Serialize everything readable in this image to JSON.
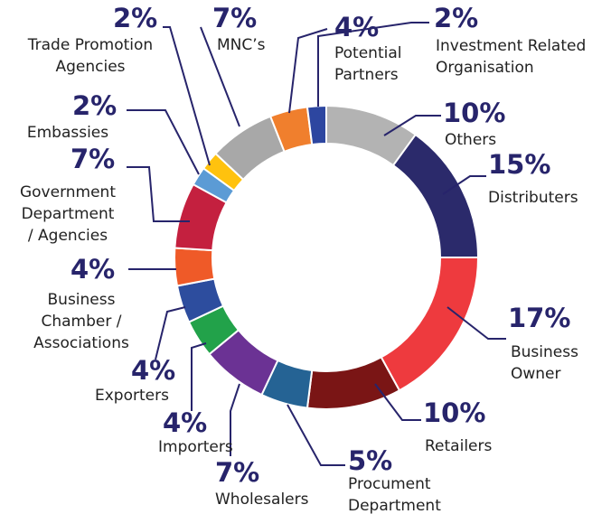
{
  "chart_data": {
    "type": "donut",
    "categories": [
      "Others",
      "Distributers",
      "Business\nOwner",
      "Retailers",
      "Procument\nDepartment",
      "Wholesalers",
      "Importers",
      "Exporters",
      "Business\nChamber /\nAssociations",
      "Government\nDepartment\n/ Agencies",
      "Embassies",
      "Trade Promotion\nAgencies",
      "MNC’s",
      "Potential\nPartners",
      "Investment Related\nOrganisation"
    ],
    "values": [
      10,
      15,
      17,
      10,
      5,
      7,
      4,
      4,
      4,
      7,
      2,
      2,
      7,
      4,
      2
    ],
    "value_labels": [
      "10%",
      "15%",
      "17%",
      "10%",
      "5%",
      "7%",
      "4%",
      "4%",
      "4%",
      "7%",
      "2%",
      "2%",
      "7%",
      "4%",
      "2%"
    ],
    "colors": [
      "#b3b3b3",
      "#2b2a6b",
      "#ee3a3e",
      "#7a1515",
      "#256394",
      "#6b3294",
      "#22a24a",
      "#2d4d9e",
      "#ef5a28",
      "#c4203f",
      "#5b9bd5",
      "#ffc20e",
      "#a8a8a8",
      "#f07f2d",
      "#2d46a0"
    ]
  }
}
